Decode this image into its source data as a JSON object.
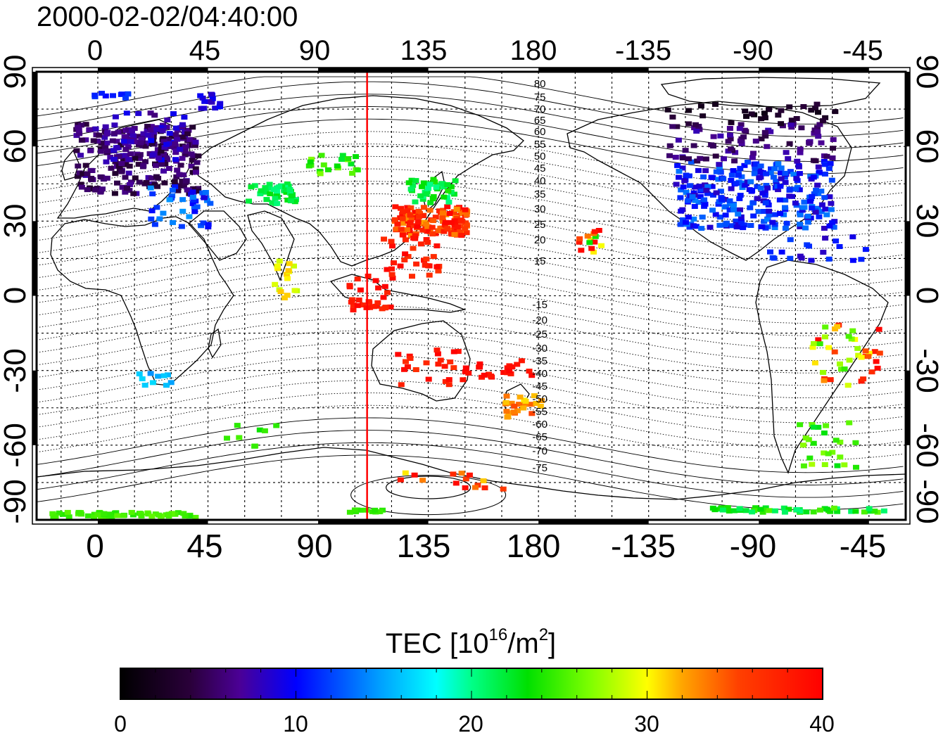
{
  "timestamp": "2000-02-02/04:40:00",
  "top_lon_ticks": [
    "0",
    "45",
    "90",
    "135",
    "180",
    "-135",
    "-90",
    "-45"
  ],
  "bottom_lon_ticks": [
    "0",
    "45",
    "90",
    "135",
    "180",
    "-135",
    "-90",
    "-45"
  ],
  "left_lat_ticks": [
    "90",
    "60",
    "30",
    "0",
    "-30",
    "-60",
    "-90"
  ],
  "right_lat_ticks": [
    "90",
    "60",
    "30",
    "0",
    "-30",
    "-60",
    "-90"
  ],
  "tick_lons": [
    0,
    45,
    90,
    135,
    180,
    225,
    270,
    315
  ],
  "tick_lats": [
    90,
    60,
    30,
    0,
    -30,
    -60,
    -90
  ],
  "map_lon_range": [
    -25,
    330
  ],
  "map_lat_range": [
    -90,
    90
  ],
  "terminator_lon": 110,
  "contour_labels": {
    "north": [
      "80",
      "75",
      "70",
      "65",
      "60",
      "55",
      "50",
      "45",
      "40",
      "35",
      "30",
      "25",
      "20",
      "15"
    ],
    "south": [
      "-15",
      "-20",
      "-25",
      "-30",
      "-35",
      "-40",
      "-45",
      "-50",
      "-55",
      "-60",
      "-65",
      "-70",
      "-75"
    ]
  },
  "colorbar": {
    "title_prefix": "TEC  [10",
    "title_exp": "16",
    "title_mid": "/m",
    "title_exp2": "2",
    "title_suffix": "]",
    "ticks": [
      "0",
      "10",
      "20",
      "30",
      "40"
    ],
    "min": 0,
    "max": 40
  },
  "colors": {
    "terminator": "#ff0000",
    "frame": "#000000",
    "grid": "#000000"
  }
}
